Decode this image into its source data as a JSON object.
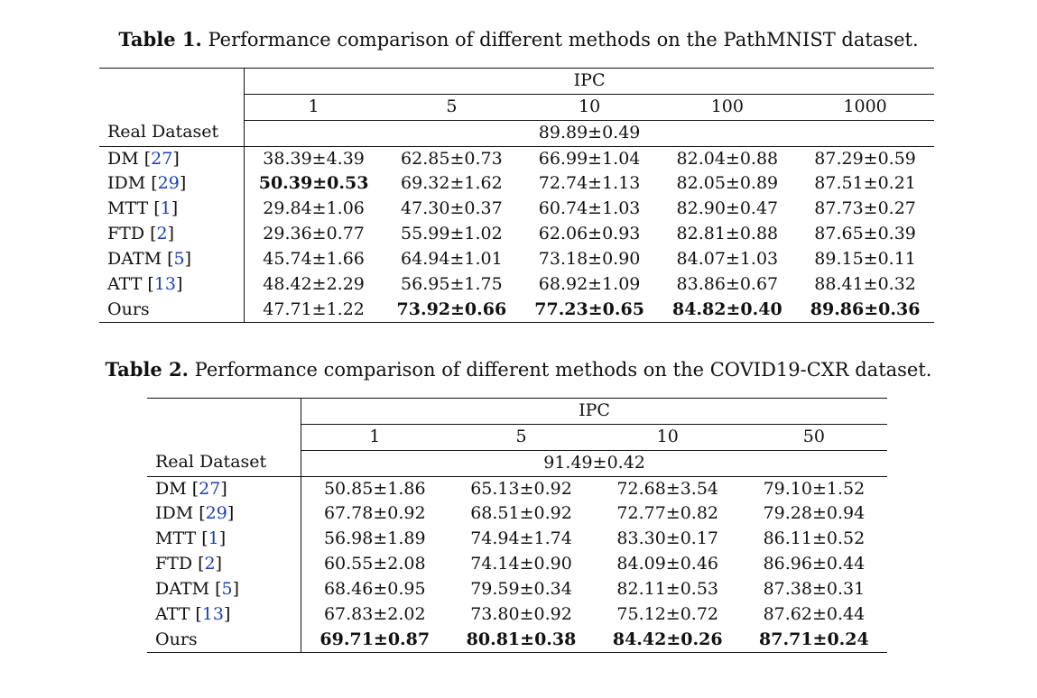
{
  "table1": {
    "caption_label": "Table 1.",
    "caption_text": " Performance comparison of different methods on the PathMNIST dataset.",
    "group_header": "IPC",
    "columns": [
      "1",
      "5",
      "10",
      "100",
      "1000"
    ],
    "real_label": "Real Dataset",
    "real_value": "89.89±0.49",
    "rows": [
      {
        "method": "DM",
        "ref": "27",
        "values": [
          "38.39±4.39",
          "62.85±0.73",
          "66.99±1.04",
          "82.04±0.88",
          "87.29±0.59"
        ],
        "bold": [
          false,
          false,
          false,
          false,
          false
        ]
      },
      {
        "method": "IDM",
        "ref": "29",
        "values": [
          "50.39±0.53",
          "69.32±1.62",
          "72.74±1.13",
          "82.05±0.89",
          "87.51±0.21"
        ],
        "bold": [
          true,
          false,
          false,
          false,
          false
        ]
      },
      {
        "method": "MTT",
        "ref": "1",
        "values": [
          "29.84±1.06",
          "47.30±0.37",
          "60.74±1.03",
          "82.90±0.47",
          "87.73±0.27"
        ],
        "bold": [
          false,
          false,
          false,
          false,
          false
        ]
      },
      {
        "method": "FTD",
        "ref": "2",
        "values": [
          "29.36±0.77",
          "55.99±1.02",
          "62.06±0.93",
          "82.81±0.88",
          "87.65±0.39"
        ],
        "bold": [
          false,
          false,
          false,
          false,
          false
        ]
      },
      {
        "method": "DATM",
        "ref": "5",
        "values": [
          "45.74±1.66",
          "64.94±1.01",
          "73.18±0.90",
          "84.07±1.03",
          "89.15±0.11"
        ],
        "bold": [
          false,
          false,
          false,
          false,
          false
        ]
      },
      {
        "method": "ATT",
        "ref": "13",
        "values": [
          "48.42±2.29",
          "56.95±1.75",
          "68.92±1.09",
          "83.86±0.67",
          "88.41±0.32"
        ],
        "bold": [
          false,
          false,
          false,
          false,
          false
        ]
      },
      {
        "method": "Ours",
        "ref": "",
        "values": [
          "47.71±1.22",
          "73.92±0.66",
          "77.23±0.65",
          "84.82±0.40",
          "89.86±0.36"
        ],
        "bold": [
          false,
          true,
          true,
          true,
          true
        ]
      }
    ]
  },
  "table2": {
    "caption_label": "Table 2.",
    "caption_text": " Performance comparison of different methods on the COVID19-CXR dataset.",
    "group_header": "IPC",
    "columns": [
      "1",
      "5",
      "10",
      "50"
    ],
    "real_label": "Real Dataset",
    "real_value": "91.49±0.42",
    "rows": [
      {
        "method": "DM",
        "ref": "27",
        "values": [
          "50.85±1.86",
          "65.13±0.92",
          "72.68±3.54",
          "79.10±1.52"
        ],
        "bold": [
          false,
          false,
          false,
          false
        ]
      },
      {
        "method": "IDM",
        "ref": "29",
        "values": [
          "67.78±0.92",
          "68.51±0.92",
          "72.77±0.82",
          "79.28±0.94"
        ],
        "bold": [
          false,
          false,
          false,
          false
        ]
      },
      {
        "method": "MTT",
        "ref": "1",
        "values": [
          "56.98±1.89",
          "74.94±1.74",
          "83.30±0.17",
          "86.11±0.52"
        ],
        "bold": [
          false,
          false,
          false,
          false
        ]
      },
      {
        "method": "FTD",
        "ref": "2",
        "values": [
          "60.55±2.08",
          "74.14±0.90",
          "84.09±0.46",
          "86.96±0.44"
        ],
        "bold": [
          false,
          false,
          false,
          false
        ]
      },
      {
        "method": "DATM",
        "ref": "5",
        "values": [
          "68.46±0.95",
          "79.59±0.34",
          "82.11±0.53",
          "87.38±0.31"
        ],
        "bold": [
          false,
          false,
          false,
          false
        ]
      },
      {
        "method": "ATT",
        "ref": "13",
        "values": [
          "67.83±2.02",
          "73.80±0.92",
          "75.12±0.72",
          "87.62±0.44"
        ],
        "bold": [
          false,
          false,
          false,
          false
        ]
      },
      {
        "method": "Ours",
        "ref": "",
        "values": [
          "69.71±0.87",
          "80.81±0.38",
          "84.42±0.26",
          "87.71±0.24"
        ],
        "bold": [
          true,
          true,
          true,
          true
        ]
      }
    ]
  },
  "colors": {
    "text": "#111111",
    "citation_link": "#1a3fb5",
    "background": "#ffffff"
  }
}
